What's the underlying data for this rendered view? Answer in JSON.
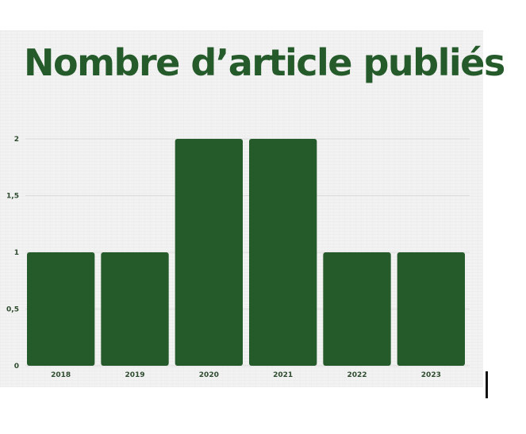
{
  "chart_data": {
    "type": "bar",
    "title": "Nombre d’article publiés",
    "xlabel": "",
    "ylabel": "",
    "categories": [
      "2018",
      "2019",
      "2020",
      "2021",
      "2022",
      "2023"
    ],
    "values": [
      1,
      1,
      2,
      2,
      1,
      1
    ],
    "ylim": [
      0,
      2
    ],
    "yticks": [
      0,
      0.5,
      1,
      1.5,
      2
    ],
    "ytick_labels": [
      "0",
      "0,5",
      "1",
      "1,5",
      "2"
    ],
    "grid": true,
    "legend": "none",
    "colors": {
      "bar": "#255a2a",
      "title": "#255a2a",
      "tick_label": "#2e4a2e",
      "grid": "#dcdcdc",
      "background": "#f2f2f2"
    }
  }
}
